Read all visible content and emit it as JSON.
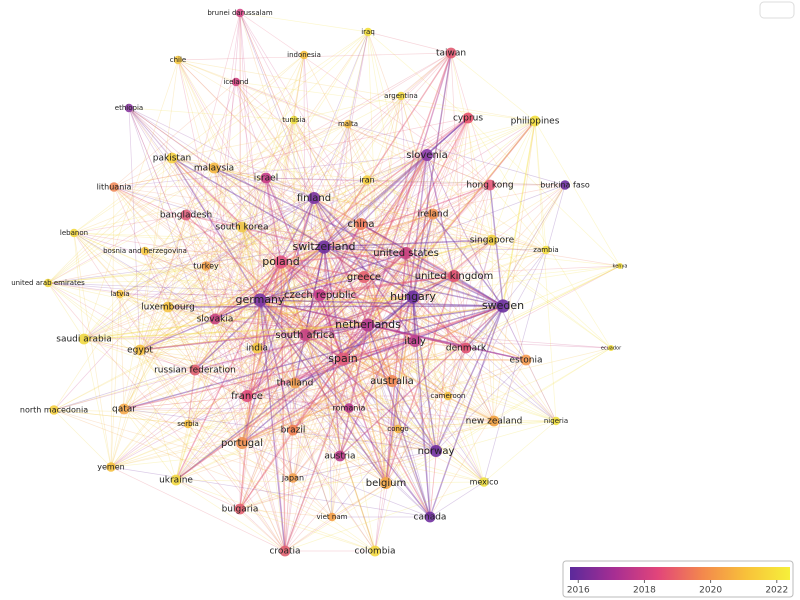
{
  "nodes": [
    {
      "label": "brunei darussalam",
      "color": "#d44a8a"
    },
    {
      "label": "iraq",
      "color": "#f2df3c"
    },
    {
      "label": "taiwan",
      "color": "#e05a70"
    },
    {
      "label": "indonesia",
      "color": "#f5c040"
    },
    {
      "label": "chile",
      "color": "#f5c842"
    },
    {
      "label": "iceland",
      "color": "#d0407f"
    },
    {
      "label": "argentina",
      "color": "#f0d840"
    },
    {
      "label": "ethiopia",
      "color": "#8a3aa0"
    },
    {
      "label": "tunisia",
      "color": "#efe040"
    },
    {
      "label": "malta",
      "color": "#f5c04a"
    },
    {
      "label": "cyprus",
      "color": "#e8506a"
    },
    {
      "label": "philippines",
      "color": "#f4e040"
    },
    {
      "label": "pakistan",
      "color": "#f5d040"
    },
    {
      "label": "malaysia",
      "color": "#f6b840"
    },
    {
      "label": "israel",
      "color": "#c83c88"
    },
    {
      "label": "slovenia",
      "color": "#8a3aa8"
    },
    {
      "label": "iran",
      "color": "#f5d040"
    },
    {
      "label": "hong kong",
      "color": "#e85a7a"
    },
    {
      "label": "burkina faso",
      "color": "#6a2fa0"
    },
    {
      "label": "lithuania",
      "color": "#f08a5a"
    },
    {
      "label": "finland",
      "color": "#7a34a4"
    },
    {
      "label": "bangladesh",
      "color": "#e06080"
    },
    {
      "label": "ireland",
      "color": "#f09050"
    },
    {
      "label": "south korea",
      "color": "#f0c848"
    },
    {
      "label": "china",
      "color": "#ee7a5a"
    },
    {
      "label": "lebanon",
      "color": "#f2d840"
    },
    {
      "label": "switzerland",
      "color": "#6e30a0"
    },
    {
      "label": "singapore",
      "color": "#f2d040"
    },
    {
      "label": "zambia",
      "color": "#f5e040"
    },
    {
      "label": "bosnia and herzegovina",
      "color": "#f5c842"
    },
    {
      "label": "poland",
      "color": "#e05080"
    },
    {
      "label": "united states",
      "color": "#c84080"
    },
    {
      "label": "turkey",
      "color": "#f4a048"
    },
    {
      "label": "kenya",
      "color": "#f5e040"
    },
    {
      "label": "united kingdom",
      "color": "#e05070"
    },
    {
      "label": "greece",
      "color": "#e46070"
    },
    {
      "label": "united arab emirates",
      "color": "#f0d840"
    },
    {
      "label": "latvia",
      "color": "#f5c442"
    },
    {
      "label": "czech republic",
      "color": "#c83a88"
    },
    {
      "label": "hungary",
      "color": "#6a2fa0"
    },
    {
      "label": "germany",
      "color": "#7a34a4"
    },
    {
      "label": "luxembourg",
      "color": "#f5c442"
    },
    {
      "label": "sweden",
      "color": "#6a2fa0"
    },
    {
      "label": "slovakia",
      "color": "#c8407f"
    },
    {
      "label": "netherlands",
      "color": "#b53890"
    },
    {
      "label": "south africa",
      "color": "#c84585"
    },
    {
      "label": "saudi arabia",
      "color": "#f0d840"
    },
    {
      "label": "italy",
      "color": "#c04090"
    },
    {
      "label": "egypt",
      "color": "#f5c040"
    },
    {
      "label": "india",
      "color": "#f4c642"
    },
    {
      "label": "denmark",
      "color": "#e05070"
    },
    {
      "label": "ecuador",
      "color": "#f5e040"
    },
    {
      "label": "spain",
      "color": "#e05a78"
    },
    {
      "label": "estonia",
      "color": "#f59a50"
    },
    {
      "label": "russian federation",
      "color": "#e06070"
    },
    {
      "label": "thailand",
      "color": "#f2a050"
    },
    {
      "label": "australia",
      "color": "#f28a55"
    },
    {
      "label": "france",
      "color": "#e04a78"
    },
    {
      "label": "cameroon",
      "color": "#f5c040"
    },
    {
      "label": "north macedonia",
      "color": "#f5d040"
    },
    {
      "label": "qatar",
      "color": "#f5a84a"
    },
    {
      "label": "romania",
      "color": "#b8388c"
    },
    {
      "label": "new zealand",
      "color": "#f2a040"
    },
    {
      "label": "nigeria",
      "color": "#f0e040"
    },
    {
      "label": "serbia",
      "color": "#f5c040"
    },
    {
      "label": "brazil",
      "color": "#f08050"
    },
    {
      "label": "congo",
      "color": "#f4b440"
    },
    {
      "label": "portugal",
      "color": "#f09050"
    },
    {
      "label": "norway",
      "color": "#7030a0"
    },
    {
      "label": "austria",
      "color": "#b83a88"
    },
    {
      "label": "yemen",
      "color": "#f5c040"
    },
    {
      "label": "japan",
      "color": "#f2a050"
    },
    {
      "label": "ukraine",
      "color": "#f2d840"
    },
    {
      "label": "belgium",
      "color": "#f4a848"
    },
    {
      "label": "mexico",
      "color": "#f0e040"
    },
    {
      "label": "bulgaria",
      "color": "#e46070"
    },
    {
      "label": "viet nam",
      "color": "#f5a048"
    },
    {
      "label": "canada",
      "color": "#7030a0"
    },
    {
      "label": "croatia",
      "color": "#e06070"
    },
    {
      "label": "colombia",
      "color": "#f3d840"
    }
  ],
  "legend": {
    "colormap": [
      "#5b2a9b",
      "#a62e93",
      "#e2457a",
      "#f3874d",
      "#f8c13a",
      "#f6f03a"
    ],
    "range": [
      2015.75,
      2022.4
    ],
    "ticks": [
      2016,
      2018,
      2020,
      2022
    ]
  }
}
